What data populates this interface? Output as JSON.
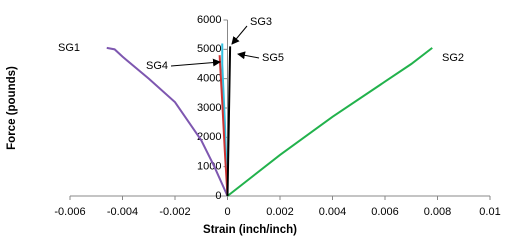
{
  "chart_data": {
    "type": "line",
    "x_label": "Strain (inch/inch)",
    "y_label": "Force (pounds)",
    "xlim": [
      -0.006,
      0.01
    ],
    "xticks": [
      -0.006,
      -0.004,
      -0.002,
      0,
      0.002,
      0.004,
      0.006,
      0.008,
      0.01
    ],
    "ylim": [
      0,
      6000
    ],
    "yticks": [
      0,
      1000,
      2000,
      3000,
      4000,
      5000,
      6000
    ],
    "grid": false,
    "series": [
      {
        "name": "SG1",
        "color": "#7e57b0",
        "x": [
          -0.0046,
          -0.0043,
          -0.004,
          -0.003,
          -0.002,
          -0.001,
          -0.0005,
          0
        ],
        "values": [
          5050,
          5000,
          4750,
          4000,
          3200,
          1900,
          1000,
          0
        ]
      },
      {
        "name": "SG2",
        "color": "#22b24c",
        "x": [
          0,
          0.002,
          0.004,
          0.006,
          0.007,
          0.0078
        ],
        "values": [
          0,
          1400,
          2700,
          3900,
          4500,
          5050
        ]
      },
      {
        "name": "SG3",
        "color": "#33c0e0",
        "x": [
          0,
          -0.0001,
          -0.0002,
          -0.0002
        ],
        "values": [
          0,
          2500,
          4500,
          5200
        ]
      },
      {
        "name": "SG4",
        "color": "#cc3333",
        "x": [
          0,
          -0.0001,
          -0.0002,
          -0.0003
        ],
        "values": [
          0,
          1500,
          3200,
          4800
        ]
      },
      {
        "name": "SG5",
        "color": "#000000",
        "x": [
          0,
          5e-05,
          0.0001
        ],
        "values": [
          0,
          2500,
          5100
        ]
      }
    ]
  }
}
